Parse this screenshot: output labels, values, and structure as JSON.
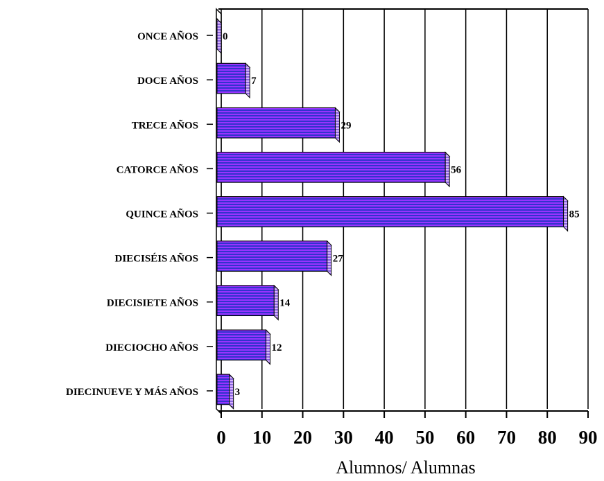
{
  "chart_data": {
    "type": "bar",
    "orientation": "horizontal",
    "categories": [
      "ONCE AÑOS",
      "DOCE AÑOS",
      "TRECE AÑOS",
      "CATORCE AÑOS",
      "QUINCE AÑOS",
      "DIECISÉIS AÑOS",
      "DIECISIETE AÑOS",
      "DIECIOCHO AÑOS",
      "DIECINUEVE Y MÁS AÑOS"
    ],
    "values": [
      0,
      7,
      29,
      56,
      85,
      27,
      14,
      12,
      3
    ],
    "data_labels": [
      "0",
      "7",
      "29",
      "56",
      "85",
      "27",
      "14",
      "12",
      "3"
    ],
    "xlabel": "Alumnos/ Alumnas",
    "ylabel": "",
    "title": "",
    "xlim": [
      0,
      90
    ],
    "x_ticks": [
      "0",
      "10",
      "20",
      "30",
      "40",
      "50",
      "60",
      "70",
      "80",
      "90"
    ],
    "grid": "vertical",
    "legend": "none",
    "style": "3d-bars",
    "colors": {
      "bar_fill": "#9933ff",
      "bar_stripe": "#3333cc",
      "bar_side": "#cc99ff",
      "bar_edge": "#000000",
      "grid": "#000000"
    }
  }
}
